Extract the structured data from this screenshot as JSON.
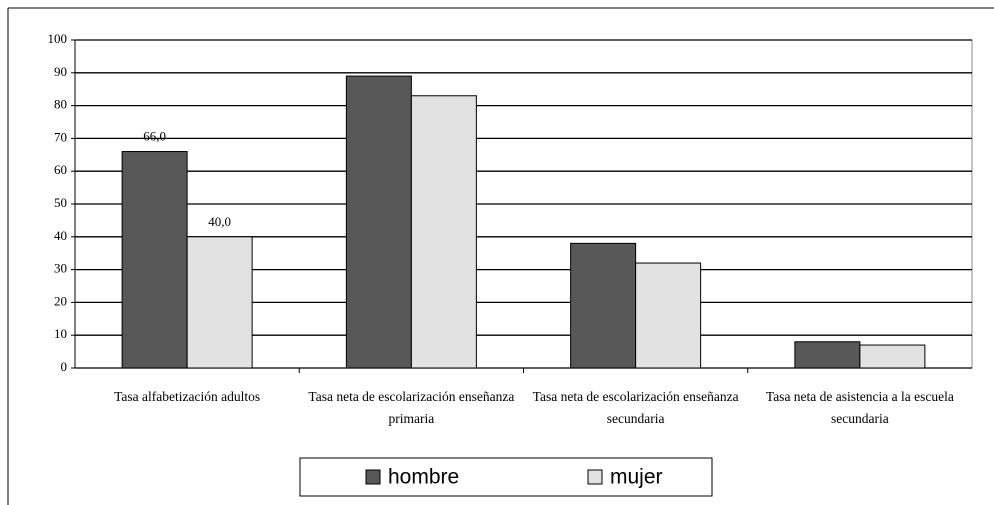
{
  "chart_data": {
    "type": "bar",
    "categories": [
      "Tasa alfabetización adultos",
      "Tasa neta de escolarización enseñanza primaria",
      "Tasa neta de escolarización enseñanza secundaria",
      "Tasa neta de asistencia a la escuela secundaria"
    ],
    "series": [
      {
        "name": "hombre",
        "color": "#585858",
        "values": [
          66,
          89,
          38,
          8
        ],
        "value_labels": [
          "66,0",
          null,
          null,
          null
        ]
      },
      {
        "name": "mujer",
        "color": "#e2e2e2",
        "values": [
          40,
          83,
          32,
          7
        ],
        "value_labels": [
          "40,0",
          null,
          null,
          null
        ]
      }
    ],
    "ylim": [
      0,
      100
    ],
    "yticks": [
      0,
      10,
      20,
      30,
      40,
      50,
      60,
      70,
      80,
      90,
      100
    ],
    "grid": true,
    "legend": "bottom"
  }
}
